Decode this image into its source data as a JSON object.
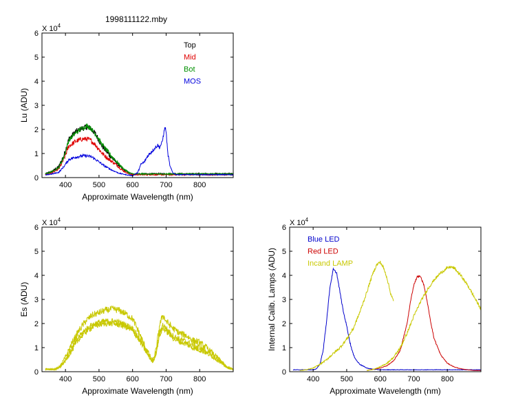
{
  "figure": {
    "title": "1998111122.mby"
  },
  "chart_data": [
    {
      "id": "lu",
      "type": "line",
      "xlabel": "Approximate Wavelength (nm)",
      "ylabel": "Lu (ADU)",
      "multiplier": "X 10",
      "multiplier_exp": "4",
      "xlim": [
        330,
        900
      ],
      "ylim": [
        0,
        6
      ],
      "xticks": [
        400,
        500,
        600,
        700,
        800
      ],
      "yticks": [
        0,
        1,
        2,
        3,
        4,
        5,
        6
      ],
      "legend_position": "top-right",
      "series": [
        {
          "name": "Top",
          "color": "#000000",
          "label_color": "#000000",
          "noise": 0.12,
          "x": [
            340,
            360,
            380,
            395,
            410,
            430,
            450,
            465,
            475,
            490,
            510,
            530,
            550,
            570,
            590,
            600,
            620,
            700,
            800,
            900
          ],
          "y": [
            0.15,
            0.25,
            0.45,
            0.9,
            1.6,
            1.9,
            2.05,
            2.1,
            2.05,
            1.8,
            1.3,
            0.95,
            0.65,
            0.35,
            0.18,
            0.15,
            0.15,
            0.15,
            0.15,
            0.15
          ]
        },
        {
          "name": "Mid",
          "color": "#e00000",
          "label_color": "#e00000",
          "noise": 0.1,
          "x": [
            340,
            360,
            380,
            395,
            410,
            430,
            450,
            465,
            475,
            490,
            510,
            530,
            550,
            570,
            590,
            600,
            620,
            700,
            800,
            900
          ],
          "y": [
            0.12,
            0.2,
            0.35,
            0.75,
            1.3,
            1.5,
            1.6,
            1.6,
            1.55,
            1.35,
            1.0,
            0.75,
            0.55,
            0.3,
            0.15,
            0.12,
            0.12,
            0.12,
            0.12,
            0.12
          ]
        },
        {
          "name": "Bot",
          "color": "#009000",
          "label_color": "#009000",
          "noise": 0.1,
          "x": [
            340,
            360,
            380,
            395,
            410,
            430,
            450,
            465,
            475,
            490,
            510,
            530,
            550,
            570,
            590,
            600,
            620,
            700,
            800,
            900
          ],
          "y": [
            0.15,
            0.25,
            0.42,
            0.85,
            1.55,
            1.85,
            2.05,
            2.15,
            2.05,
            1.8,
            1.35,
            1.0,
            0.7,
            0.4,
            0.2,
            0.15,
            0.15,
            0.15,
            0.15,
            0.15
          ]
        },
        {
          "name": "MOS",
          "color": "#0000dd",
          "label_color": "#0000dd",
          "noise": 0.07,
          "x": [
            340,
            360,
            380,
            395,
            410,
            430,
            450,
            465,
            480,
            500,
            520,
            540,
            560,
            580,
            600,
            615,
            625,
            635,
            645,
            655,
            665,
            675,
            680,
            688,
            693,
            697,
            700,
            705,
            712,
            720,
            730,
            800,
            900
          ],
          "y": [
            0.1,
            0.15,
            0.22,
            0.45,
            0.75,
            0.85,
            0.9,
            0.9,
            0.85,
            0.65,
            0.45,
            0.3,
            0.18,
            0.12,
            0.08,
            0.2,
            0.55,
            0.65,
            0.9,
            1.05,
            1.2,
            1.35,
            1.25,
            1.45,
            1.85,
            2.1,
            1.9,
            1.0,
            0.45,
            0.2,
            0.12,
            0.12,
            0.12
          ]
        }
      ]
    },
    {
      "id": "es",
      "type": "line",
      "xlabel": "Approximate Wavelength (nm)",
      "ylabel": "Es (ADU)",
      "multiplier": "X 10",
      "multiplier_exp": "4",
      "xlim": [
        330,
        900
      ],
      "ylim": [
        0,
        6
      ],
      "xticks": [
        400,
        500,
        600,
        700,
        800
      ],
      "yticks": [
        0,
        1,
        2,
        3,
        4,
        5,
        6
      ],
      "series": [
        {
          "name": "",
          "color": "#c8c800",
          "label_color": "#c8c800",
          "noise": 0.14,
          "x": [
            340,
            370,
            385,
            400,
            420,
            440,
            460,
            480,
            500,
            520,
            540,
            560,
            580,
            600,
            620,
            635,
            650,
            660,
            670,
            680,
            690,
            700,
            720,
            740,
            760,
            780,
            800,
            820,
            840,
            860,
            880,
            900
          ],
          "y": [
            0.1,
            0.1,
            0.25,
            0.6,
            1.2,
            1.7,
            2.1,
            2.35,
            2.45,
            2.55,
            2.6,
            2.55,
            2.4,
            2.2,
            1.6,
            1.1,
            0.7,
            0.45,
            0.9,
            1.9,
            2.35,
            2.1,
            1.8,
            1.6,
            1.5,
            1.3,
            1.2,
            1.0,
            0.75,
            0.5,
            0.2,
            0.1
          ]
        },
        {
          "name": "",
          "color": "#c8c800",
          "label_color": "#c8c800",
          "noise": 0.12,
          "x": [
            340,
            370,
            385,
            400,
            420,
            440,
            460,
            480,
            500,
            520,
            540,
            560,
            580,
            600,
            620,
            635,
            650,
            660,
            670,
            680,
            690,
            700,
            720,
            740,
            760,
            780,
            800,
            820,
            840,
            860,
            880,
            900
          ],
          "y": [
            0.1,
            0.1,
            0.22,
            0.5,
            1.0,
            1.45,
            1.75,
            1.95,
            2.05,
            2.1,
            2.1,
            2.05,
            1.95,
            1.8,
            1.4,
            1.0,
            0.65,
            0.4,
            0.8,
            1.6,
            1.95,
            1.8,
            1.5,
            1.35,
            1.25,
            1.1,
            1.0,
            0.85,
            0.65,
            0.45,
            0.2,
            0.1
          ]
        },
        {
          "name": "",
          "color": "#c8c800",
          "label_color": "#c8c800",
          "noise": 0.12,
          "x": [
            340,
            370,
            385,
            400,
            420,
            440,
            460,
            480,
            500,
            520,
            540,
            560,
            580,
            600,
            620,
            635,
            650,
            660,
            670,
            680,
            690,
            700,
            720,
            740,
            760,
            780,
            800,
            820,
            840,
            860,
            880,
            900
          ],
          "y": [
            0.1,
            0.1,
            0.2,
            0.45,
            0.9,
            1.35,
            1.65,
            1.85,
            1.95,
            2.0,
            2.0,
            1.95,
            1.85,
            1.7,
            1.3,
            0.95,
            0.6,
            0.38,
            0.75,
            1.5,
            1.8,
            1.7,
            1.4,
            1.25,
            1.15,
            1.0,
            0.9,
            0.78,
            0.6,
            0.4,
            0.18,
            0.1
          ]
        }
      ]
    },
    {
      "id": "lamps",
      "type": "line",
      "xlabel": "Approximate Wavelength (nm)",
      "ylabel": "Internal Calib. Lamps (ADU)",
      "multiplier": "X 10",
      "multiplier_exp": "4",
      "xlim": [
        330,
        900
      ],
      "ylim": [
        0,
        6
      ],
      "xticks": [
        400,
        500,
        600,
        700,
        800
      ],
      "yticks": [
        0,
        1,
        2,
        3,
        4,
        5,
        6
      ],
      "legend_position": "top-left",
      "series": [
        {
          "name": "Blue LED",
          "color": "#0000cc",
          "label_color": "#0000cc",
          "noise": 0.04,
          "x": [
            340,
            400,
            410,
            420,
            430,
            440,
            450,
            460,
            470,
            480,
            490,
            500,
            510,
            520,
            530,
            540,
            560,
            580,
            600,
            650,
            700,
            800,
            900
          ],
          "y": [
            0.08,
            0.08,
            0.12,
            0.3,
            0.9,
            2.1,
            3.5,
            4.25,
            4.1,
            3.3,
            2.5,
            1.9,
            1.2,
            0.7,
            0.45,
            0.3,
            0.15,
            0.1,
            0.08,
            0.08,
            0.08,
            0.08,
            0.08
          ]
        },
        {
          "name": "Red LED",
          "color": "#cc0000",
          "label_color": "#cc0000",
          "noise": 0.03,
          "x": [
            560,
            580,
            600,
            620,
            640,
            660,
            680,
            690,
            700,
            710,
            720,
            730,
            740,
            750,
            760,
            780,
            800,
            820,
            840,
            860,
            880,
            900
          ],
          "y": [
            0.05,
            0.1,
            0.15,
            0.25,
            0.45,
            0.9,
            2.0,
            2.9,
            3.6,
            3.95,
            3.95,
            3.6,
            2.9,
            2.1,
            1.4,
            0.7,
            0.35,
            0.2,
            0.12,
            0.08,
            0.05,
            0.05
          ]
        },
        {
          "name": "Incand LAMP",
          "color": "#c8c800",
          "label_color": "#c8c800",
          "noise": 0.06,
          "x": [
            360,
            380,
            400,
            420,
            440,
            460,
            480,
            500,
            520,
            540,
            560,
            570,
            580,
            590,
            600,
            610,
            620,
            630,
            640
          ],
          "y": [
            0.05,
            0.08,
            0.15,
            0.3,
            0.5,
            0.75,
            1.0,
            1.35,
            1.8,
            2.5,
            3.3,
            3.75,
            4.15,
            4.45,
            4.55,
            4.3,
            3.9,
            3.3,
            2.9
          ]
        },
        {
          "name": "",
          "color": "#c8c800",
          "label_color": "#c8c800",
          "noise": 0.06,
          "x": [
            560,
            580,
            600,
            620,
            640,
            660,
            680,
            700,
            720,
            740,
            760,
            780,
            800,
            810,
            820,
            840,
            860,
            880,
            900
          ],
          "y": [
            0.05,
            0.1,
            0.2,
            0.35,
            0.6,
            1.0,
            1.6,
            2.3,
            2.9,
            3.4,
            3.8,
            4.1,
            4.3,
            4.35,
            4.3,
            4.0,
            3.6,
            3.1,
            2.6
          ]
        }
      ]
    }
  ]
}
